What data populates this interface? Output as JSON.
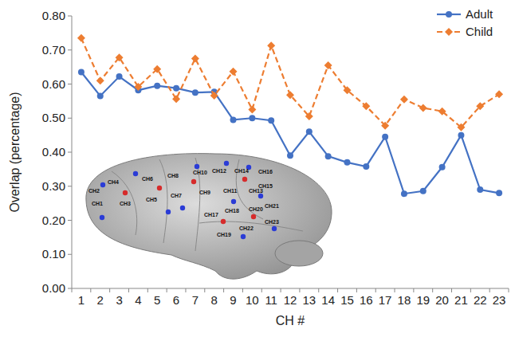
{
  "chart_data": {
    "type": "line",
    "x_label": "CH #",
    "y_label": "Overlap (percentage)",
    "categories": [
      "1",
      "2",
      "3",
      "4",
      "5",
      "6",
      "7",
      "8",
      "9",
      "10",
      "11",
      "12",
      "13",
      "14",
      "15",
      "16",
      "17",
      "18",
      "19",
      "20",
      "21",
      "22",
      "23"
    ],
    "series": [
      {
        "name": "Adult",
        "color": "#4472c4",
        "marker": "circle",
        "line_style": "solid",
        "values": [
          0.635,
          0.565,
          0.622,
          0.582,
          0.595,
          0.588,
          0.575,
          0.577,
          0.495,
          0.5,
          0.493,
          0.39,
          0.46,
          0.388,
          0.37,
          0.358,
          0.445,
          0.278,
          0.286,
          0.356,
          0.45,
          0.29,
          0.28
        ]
      },
      {
        "name": "Child",
        "color": "#ed7d31",
        "marker": "diamond",
        "line_style": "dashed",
        "values": [
          0.735,
          0.61,
          0.678,
          0.592,
          0.644,
          0.556,
          0.675,
          0.566,
          0.637,
          0.525,
          0.713,
          0.568,
          0.505,
          0.655,
          0.582,
          0.535,
          0.478,
          0.555,
          0.53,
          0.52,
          0.473,
          0.535,
          0.57
        ]
      }
    ],
    "ylim": [
      0,
      0.8
    ],
    "yticks": [
      {
        "value": 0,
        "label": "0.00"
      },
      {
        "value": 0.1,
        "label": "0.10"
      },
      {
        "value": 0.2,
        "label": "0.20"
      },
      {
        "value": 0.3,
        "label": "0.30"
      },
      {
        "value": 0.4,
        "label": "0.40"
      },
      {
        "value": 0.5,
        "label": "0.50"
      },
      {
        "value": 0.6,
        "label": "0.60"
      },
      {
        "value": 0.7,
        "label": "0.70"
      },
      {
        "value": 0.8,
        "label": "0.80"
      }
    ],
    "grid": false,
    "legend": "top-right",
    "annotations": [
      "CH1",
      "CH2",
      "CH3",
      "CH4",
      "CH5",
      "CH6",
      "CH7",
      "CH8",
      "CH9",
      "CH10",
      "CH11",
      "CH12",
      "CH13",
      "CH14",
      "CH15",
      "CH16",
      "CH17",
      "CH18",
      "CH19",
      "CH20",
      "CH21",
      "CH22",
      "CH23"
    ]
  }
}
